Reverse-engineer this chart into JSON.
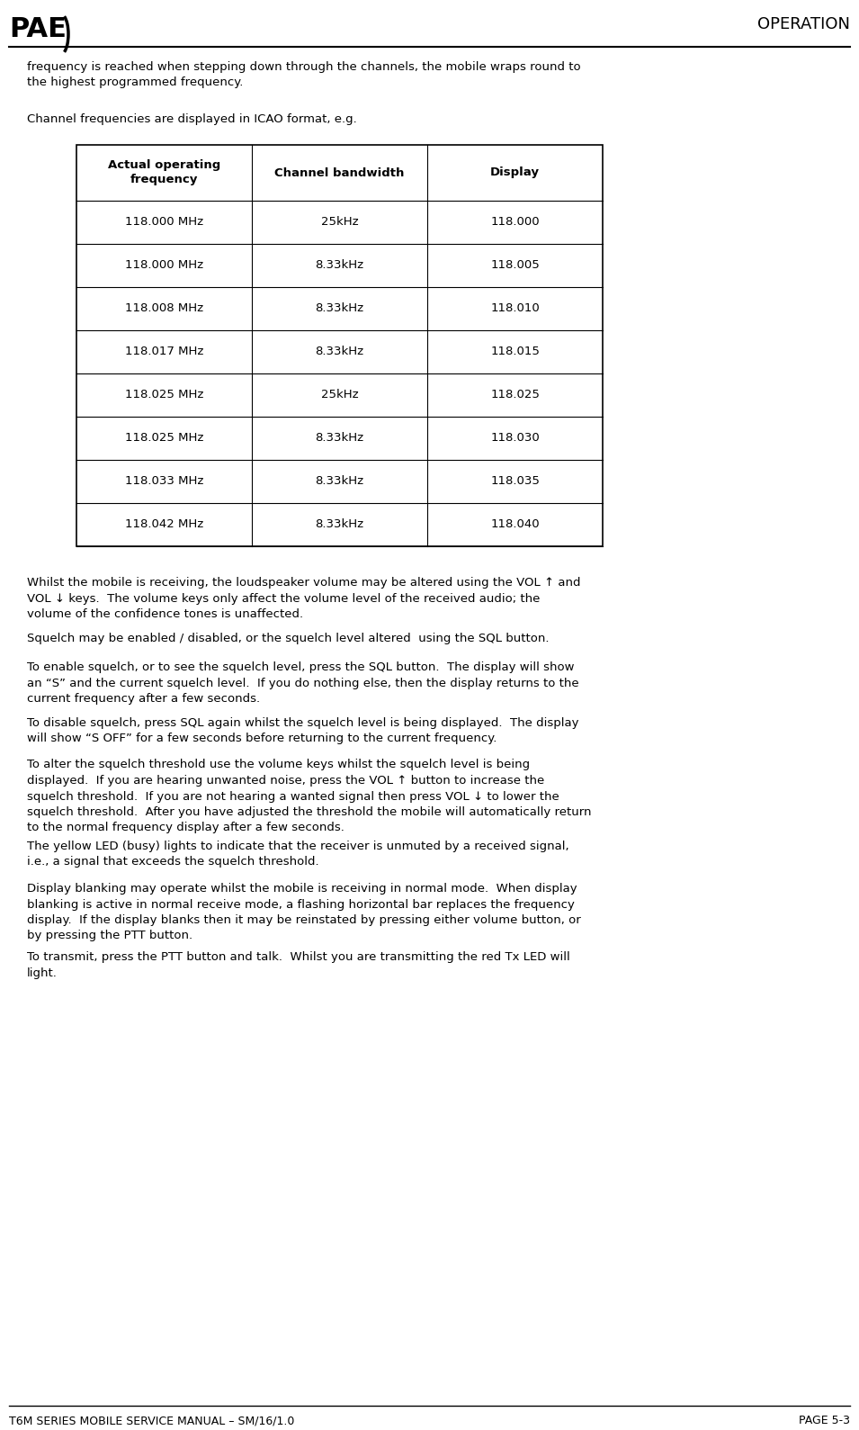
{
  "page_title_left": "T6M SERIES MOBILE SERVICE MANUAL – SM/16/1.0",
  "page_title_right": "PAGE 5-3",
  "header_right": "OPERATION",
  "logo_text": "PAE",
  "body_paragraphs": [
    "frequency is reached when stepping down through the channels, the mobile wraps round to\nthe highest programmed frequency.",
    "Channel frequencies are displayed in ICAO format, e.g."
  ],
  "table_headers": [
    "Actual operating\nfrequency",
    "Channel bandwidth",
    "Display"
  ],
  "table_rows": [
    [
      "118.000 MHz",
      "25kHz",
      "118.000"
    ],
    [
      "118.000 MHz",
      "8.33kHz",
      "118.005"
    ],
    [
      "118.008 MHz",
      "8.33kHz",
      "118.010"
    ],
    [
      "118.017 MHz",
      "8.33kHz",
      "118.015"
    ],
    [
      "118.025 MHz",
      "25kHz",
      "118.025"
    ],
    [
      "118.025 MHz",
      "8.33kHz",
      "118.030"
    ],
    [
      "118.033 MHz",
      "8.33kHz",
      "118.035"
    ],
    [
      "118.042 MHz",
      "8.33kHz",
      "118.040"
    ]
  ],
  "post_table_paragraphs": [
    "Whilst the mobile is receiving, the loudspeaker volume may be altered using the VOL ↑ and\nVOL ↓ keys.  The volume keys only affect the volume level of the received audio; the\nvolume of the confidence tones is unaffected.",
    "Squelch may be enabled / disabled, or the squelch level altered  using the SQL button.",
    "To enable squelch, or to see the squelch level, press the SQL button.  The display will show\nan “S” and the current squelch level.  If you do nothing else, then the display returns to the\ncurrent frequency after a few seconds.",
    "To disable squelch, press SQL again whilst the squelch level is being displayed.  The display\nwill show “S OFF” for a few seconds before returning to the current frequency.",
    "To alter the squelch threshold use the volume keys whilst the squelch level is being\ndisplayed.  If you are hearing unwanted noise, press the VOL ↑ button to increase the\nsquelch threshold.  If you are not hearing a wanted signal then press VOL ↓ to lower the\nsquelch threshold.  After you have adjusted the threshold the mobile will automatically return\nto the normal frequency display after a few seconds.",
    "The yellow LED (busy) lights to indicate that the receiver is unmuted by a received signal,\ni.e., a signal that exceeds the squelch threshold.",
    "Display blanking may operate whilst the mobile is receiving in normal mode.  When display\nblanking is active in normal receive mode, a flashing horizontal bar replaces the frequency\ndisplay.  If the display blanks then it may be reinstated by pressing either volume button, or\nby pressing the PTT button.",
    "To transmit, press the PTT button and talk.  Whilst you are transmitting the red Tx LED will\nlight."
  ],
  "bg_color": "#ffffff",
  "text_color": "#000000",
  "line_color": "#000000",
  "table_border_color": "#000000",
  "header_font_size": 9.5,
  "body_font_size": 9.5,
  "footer_font_size": 9.0
}
